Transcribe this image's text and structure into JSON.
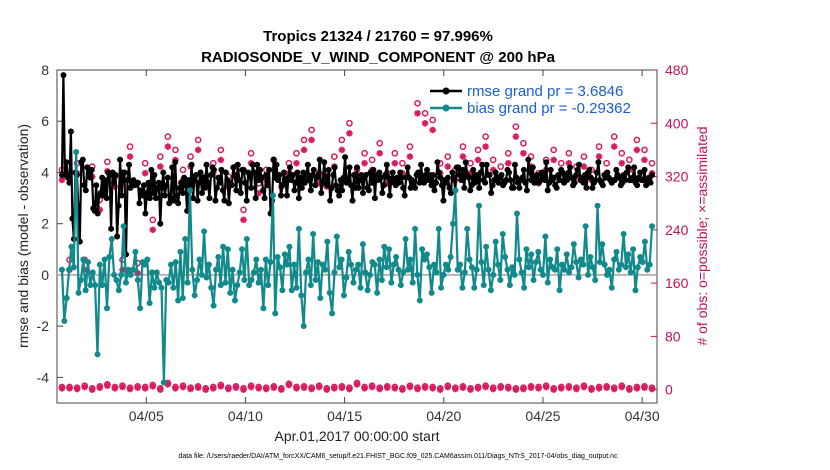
{
  "chart_data": {
    "type": "line",
    "title": "Tropics 21324 / 21760 = 97.996%",
    "subtitle": "RADIOSONDE_V_WIND_COMPONENT @ 200 hPa",
    "xlabel": "Apr.01,2017 00:00:00 start",
    "ylabel": "rmse and bias (model - observation)",
    "ylabel_right": "# of obs: o=possible; ×=assimilated",
    "footer": "data file: /Users/raeder/DAI/ATM_forcXX/CAM6_setup/f.e21.FHIST_BGC.f09_025.CAM6assim.011/Diags_NTrS_2017-04/obs_diag_output.nc",
    "xlim": [
      0.5,
      30.75
    ],
    "ylim": [
      -5,
      8
    ],
    "ylim_right": [
      -20,
      480
    ],
    "xticks": [
      5,
      10,
      15,
      20,
      25,
      30
    ],
    "xtick_labels": [
      "04/05",
      "04/10",
      "04/15",
      "04/20",
      "04/25",
      "04/30"
    ],
    "yticks": [
      -4,
      -2,
      0,
      2,
      4,
      6,
      8
    ],
    "ytick_labels": [
      "-4",
      "-2",
      "0",
      "2",
      "4",
      "6",
      "8"
    ],
    "yticks_right": [
      0,
      80,
      160,
      240,
      320,
      400,
      480
    ],
    "ytick_labels_right": [
      "0",
      "80",
      "160",
      "240",
      "320",
      "400",
      "480"
    ],
    "zero_line": 0,
    "grid": true,
    "legend_position": "top-right",
    "series": [
      {
        "name": "rmse grand pr = 3.6846",
        "color": "#000000",
        "marker": "dot",
        "axis": "left",
        "values": [
          3.9,
          7.8,
          3.9,
          4.4,
          3.8,
          3.6,
          5.6,
          2.2,
          1.4,
          4.0,
          3.9,
          2.7,
          1.3,
          4.4,
          4.5,
          3.5,
          3.3,
          4.2,
          4.0,
          3.8,
          4.1,
          2.6,
          2.5,
          3.5,
          2.4,
          3.1,
          3.2,
          3.8,
          3.1,
          3.7,
          3.0,
          4.0,
          3.9,
          1.8,
          4.0,
          3.6,
          3.9,
          1.5,
          2.7,
          4.5,
          3.1,
          4.0,
          4.0,
          0.8,
          3.7,
          4.3,
          3.4,
          3.6,
          3.7,
          3.5,
          3.6,
          3.6,
          2.8,
          3.3,
          3.1,
          3.5,
          2.4,
          3.2,
          3.6,
          3.0,
          4.1,
          3.2,
          3.9,
          3.0,
          3.4,
          3.6,
          2.0,
          3.4,
          4.0,
          3.1,
          3.5,
          3.8,
          2.8,
          3.0,
          4.2,
          2.9,
          4.4,
          3.1,
          2.8,
          3.4,
          3.6,
          3.2,
          3.8,
          3.5,
          2.5,
          3.7,
          3.3,
          4.3,
          3.0,
          3.8,
          3.9,
          2.9,
          3.6,
          4.0,
          3.2,
          3.8,
          3.4,
          4.3,
          3.6,
          3.0,
          3.9,
          4.2,
          4.1,
          2.9,
          3.4,
          3.8,
          3.6,
          4.1,
          3.3,
          2.9,
          4.0,
          3.7,
          2.8,
          3.6,
          3.5,
          4.2,
          3.9,
          3.3,
          4.3,
          3.7,
          3.2,
          4.1,
          4.1,
          3.6,
          2.9,
          4.0,
          3.9,
          3.4,
          4.3,
          4.0,
          3.0,
          4.3,
          3.7,
          4.1,
          3.8,
          3.3,
          3.0,
          3.9,
          3.5,
          4.1,
          2.4,
          2.9,
          4.5,
          3.8,
          4.3,
          3.7,
          3.9,
          3.1,
          3.5,
          4.0,
          3.6,
          3.1,
          3.8,
          4.2,
          3.7,
          3.9,
          3.3,
          3.6,
          4.0,
          3.0,
          3.8,
          3.4,
          4.0,
          3.6,
          3.9,
          4.3,
          3.7,
          3.3,
          3.9,
          4.1,
          3.5,
          3.8,
          3.9,
          4.5,
          3.2,
          3.6,
          4.4,
          3.8,
          3.5,
          4.1,
          2.9,
          3.4,
          3.9,
          4.2,
          3.5,
          3.3,
          3.1,
          3.7,
          3.3,
          3.8,
          4.6,
          3.6,
          3.7,
          4.2,
          3.5,
          2.9,
          3.9,
          3.4,
          4.2,
          3.4,
          3.7,
          3.9,
          3.2,
          3.8,
          3.9,
          3.4,
          3.3,
          4.0,
          3.6,
          4.1,
          3.0,
          3.9,
          3.7,
          4.0,
          3.8,
          3.2,
          3.5,
          3.9,
          4.3,
          3.8,
          3.1,
          3.7,
          4.0,
          3.6,
          3.5,
          3.8,
          3.6,
          4.0,
          3.8,
          3.4,
          3.1,
          3.8,
          4.2,
          3.8,
          3.4,
          3.7,
          3.6,
          3.4,
          3.9,
          4.0,
          3.6,
          4.3,
          3.7,
          3.6,
          3.9,
          4.1,
          3.7,
          3.9,
          3.5,
          3.9,
          3.3,
          3.6,
          4.4,
          4.0,
          3.8,
          3.5,
          2.9,
          3.7,
          3.6,
          3.8,
          3.4,
          3.2,
          4.0,
          3.8,
          3.3,
          4.2,
          4.2,
          3.9,
          3.7,
          4.1,
          3.4,
          4.4,
          3.9,
          3.8,
          3.3,
          3.5,
          4.1,
          3.6,
          3.9,
          3.8,
          3.4,
          4.0,
          4.3,
          3.7,
          3.6,
          4.3,
          3.9,
          3.9,
          3.2,
          3.5,
          3.7,
          4.0,
          3.8,
          3.6,
          3.8,
          3.9,
          3.5,
          3.6,
          3.7,
          4.1,
          4.0,
          3.7,
          3.4,
          3.4,
          4.3,
          3.8,
          3.6,
          3.4,
          3.7,
          3.8,
          4.1,
          3.6,
          3.3,
          4.5,
          4.0,
          3.7,
          4.2,
          3.6,
          3.8,
          3.9,
          3.6,
          3.7,
          4.0,
          3.8,
          3.7,
          4.4,
          3.3,
          3.6,
          4.1,
          3.7,
          3.8,
          3.5,
          3.4,
          3.9,
          3.7,
          4.1,
          4.0,
          3.6,
          3.9,
          3.7,
          4.0,
          4.2,
          3.8,
          3.5,
          3.6,
          3.9,
          4.1,
          4.3,
          3.7,
          3.8,
          3.6,
          3.9,
          3.4,
          4.0,
          4.1,
          3.8,
          3.4,
          3.6,
          3.7,
          4.0,
          4.4,
          3.7,
          3.6,
          3.5,
          3.9,
          3.8,
          4.0,
          3.8,
          3.7,
          3.6,
          3.7,
          3.7,
          4.1,
          3.9,
          3.8,
          3.5,
          3.6,
          3.9,
          3.7,
          4.0,
          4.2,
          3.7,
          3.7,
          3.8,
          4.2,
          3.6,
          3.5,
          3.8,
          4.0,
          3.7,
          3.7,
          4.1,
          3.5,
          3.7,
          3.8,
          3.6,
          3.9
        ]
      },
      {
        "name": "bias grand pr = -0.29362",
        "color": "#12898a",
        "marker": "dot",
        "axis": "left",
        "values": [
          0.2,
          -1.8,
          -0.9,
          0.2,
          1.1,
          0.3,
          4.8,
          -0.7,
          -0.2,
          0.6,
          -0.6,
          0.5,
          -0.4,
          0.1,
          -0.4,
          -3.1,
          0.4,
          -0.4,
          0.6,
          -1.3,
          0.7,
          1.4,
          0.0,
          -0.2,
          -0.6,
          0.0,
          1.9,
          -0.3,
          0.2,
          0.0,
          0.2,
          0.9,
          -0.2,
          -1.3,
          0.5,
          0.4,
          0.6,
          -1.1,
          0.1,
          -0.5,
          0.1,
          -0.3,
          -0.5,
          -4.2,
          -0.2,
          -0.3,
          0.4,
          -0.5,
          0.5,
          -1.0,
          0.9,
          -0.9,
          1.4,
          -0.3,
          3.3,
          0.2,
          -0.8,
          -0.2,
          0.6,
          0.0,
          1.7,
          -0.1,
          0.4,
          -0.5,
          -1.2,
          0.2,
          0.7,
          -0.4,
          1.1,
          -0.3,
          1.0,
          -0.7,
          0.2,
          -1.0,
          -0.4,
          0.1,
          1.0,
          -0.2,
          1.4,
          -0.4,
          -0.2,
          0.1,
          0.6,
          -0.3,
          0.2,
          -1.3,
          0.6,
          -0.4,
          0.5,
          3.1,
          -1.5,
          0.7,
          0.3,
          -0.6,
          0.8,
          0.4,
          1.1,
          -0.6,
          0.4,
          -0.5,
          1.8,
          -0.8,
          -2.0,
          0.1,
          0.6,
          -0.4,
          1.6,
          -0.2,
          0.5,
          -0.9,
          0.4,
          0.2,
          1.3,
          -0.7,
          -1.5,
          0.1,
          1.5,
          0.3,
          0.6,
          -0.8,
          -0.1,
          0.9,
          0.4,
          -0.3,
          0.2,
          0.4,
          -0.5,
          1.2,
          0.1,
          -0.6,
          0.0,
          0.5,
          0.4,
          -0.7,
          0.6,
          -0.2,
          1.1,
          0.3,
          1.0,
          -0.3,
          0.4,
          0.7,
          0.2,
          -0.4,
          0.1,
          1.4,
          0.2,
          0.6,
          -0.3,
          1.8,
          0.0,
          -1.0,
          1.0,
          0.6,
          0.8,
          0.3,
          -0.7,
          0.4,
          0.1,
          1.8,
          -0.5,
          0.0,
          0.4,
          0.2,
          0.7,
          2.0,
          3.3,
          0.2,
          0.4,
          -0.5,
          0.1,
          1.8,
          0.6,
          0.3,
          -0.5,
          0.2,
          2.7,
          0.5,
          -0.4,
          1.1,
          0.2,
          -0.6,
          0.0,
          1.3,
          0.4,
          -0.2,
          1.6,
          0.7,
          0.2,
          -0.4,
          0.3,
          0.0,
          2.4,
          0.6,
          0.1,
          -0.5,
          1.0,
          0.3,
          0.8,
          -0.2,
          0.5,
          0.9,
          0.2,
          0.0,
          1.5,
          -0.3,
          0.6,
          0.3,
          0.2,
          1.0,
          -0.6,
          0.4,
          0.2,
          0.8,
          0.1,
          0.3,
          1.2,
          0.5,
          -0.1,
          0.6,
          0.4,
          1.9,
          0.0,
          0.7,
          0.3,
          -0.2,
          2.7,
          0.5,
          1.2,
          0.4,
          0.0,
          0.2,
          -0.5,
          0.6,
          0.9,
          0.2,
          0.4,
          1.6,
          0.3,
          0.8,
          0.1,
          1.0,
          -0.6,
          0.3,
          0.7,
          0.5,
          1.3,
          0.2,
          0.4,
          1.9
        ]
      }
    ],
    "obs_counts": {
      "axis": "right",
      "color": "#d81b60",
      "possible_marker": "o",
      "assimilated_marker": "×",
      "possible": [
        330,
        195,
        340,
        195,
        335,
        285,
        342,
        320,
        195,
        365,
        190,
        340,
        255,
        350,
        380,
        360,
        330,
        350,
        375,
        320,
        340,
        360,
        320,
        335,
        270,
        355,
        310,
        330,
        345,
        320,
        340,
        355,
        375,
        390,
        325,
        320,
        350,
        375,
        400,
        330,
        355,
        345,
        370,
        325,
        355,
        340,
        365,
        430,
        415,
        405,
        340,
        350,
        330,
        365,
        340,
        360,
        380,
        345,
        335,
        355,
        395,
        370,
        350,
        325,
        345,
        360,
        340,
        355,
        335,
        350,
        330,
        365,
        340,
        380,
        355,
        345,
        375,
        360,
        340
      ],
      "assimilated": [
        315,
        180,
        325,
        180,
        320,
        270,
        328,
        305,
        180,
        350,
        175,
        325,
        240,
        335,
        365,
        345,
        315,
        335,
        360,
        305,
        325,
        345,
        305,
        320,
        255,
        340,
        295,
        315,
        330,
        305,
        325,
        340,
        360,
        375,
        310,
        305,
        335,
        360,
        385,
        315,
        340,
        330,
        355,
        310,
        340,
        325,
        350,
        415,
        400,
        390,
        325,
        335,
        315,
        350,
        325,
        345,
        365,
        330,
        320,
        340,
        380,
        355,
        335,
        310,
        330,
        345,
        325,
        340,
        320,
        335,
        315,
        350,
        325,
        365,
        340,
        330,
        360,
        345,
        325
      ],
      "low_possible": [
        4,
        4,
        3,
        6,
        2,
        5,
        8,
        4,
        6,
        3,
        5,
        4,
        7,
        2,
        10,
        4,
        6,
        3,
        5,
        2,
        4,
        7,
        3,
        5,
        2,
        6,
        4,
        3,
        5,
        2,
        9,
        4,
        5,
        3,
        6,
        2,
        4,
        5,
        3,
        10,
        4,
        6,
        3,
        5,
        4,
        2,
        6,
        3,
        5,
        4,
        2,
        6,
        3,
        5,
        2,
        4,
        6,
        3,
        5,
        4,
        2,
        3,
        5,
        4,
        6,
        2,
        4,
        5,
        3,
        6,
        2,
        4,
        5,
        3,
        6,
        2,
        4,
        5,
        3
      ],
      "low_assimilated": [
        2,
        2,
        1,
        4,
        0,
        3,
        6,
        2,
        4,
        1,
        3,
        2,
        5,
        0,
        8,
        2,
        4,
        1,
        3,
        0,
        2,
        5,
        1,
        3,
        0,
        4,
        2,
        1,
        3,
        0,
        7,
        2,
        3,
        1,
        4,
        0,
        2,
        3,
        1,
        8,
        2,
        4,
        1,
        3,
        2,
        0,
        4,
        1,
        3,
        2,
        0,
        4,
        1,
        3,
        0,
        2,
        4,
        1,
        3,
        2,
        0,
        1,
        3,
        2,
        4,
        0,
        2,
        3,
        1,
        4,
        0,
        2,
        3,
        1,
        4,
        0,
        2,
        3,
        1
      ]
    }
  }
}
